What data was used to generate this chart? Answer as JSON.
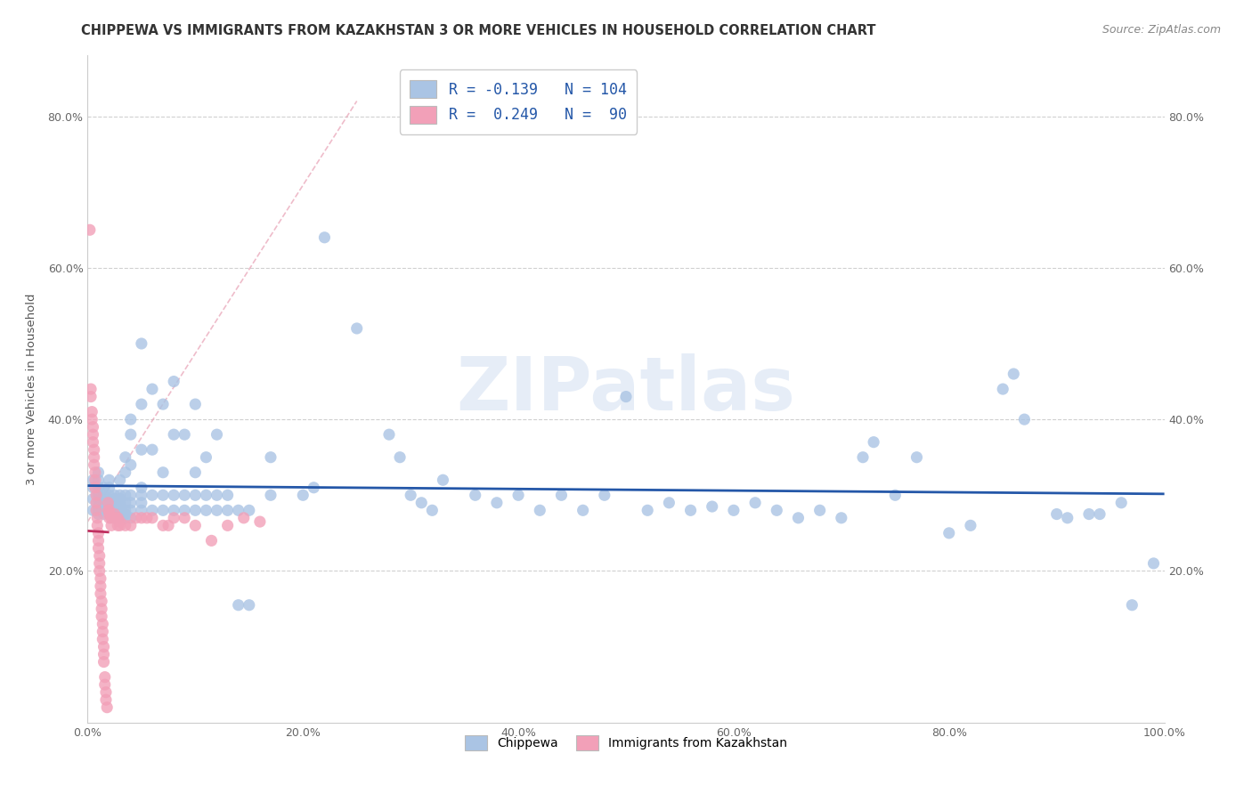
{
  "title": "CHIPPEWA VS IMMIGRANTS FROM KAZAKHSTAN 3 OR MORE VEHICLES IN HOUSEHOLD CORRELATION CHART",
  "source": "Source: ZipAtlas.com",
  "ylabel": "3 or more Vehicles in Household",
  "xmin": 0.0,
  "xmax": 1.0,
  "ymin": 0.0,
  "ymax": 0.88,
  "x_tick_labels": [
    "0.0%",
    "20.0%",
    "40.0%",
    "60.0%",
    "80.0%",
    "100.0%"
  ],
  "x_tick_vals": [
    0.0,
    0.2,
    0.4,
    0.6,
    0.8,
    1.0
  ],
  "y_tick_labels": [
    "20.0%",
    "40.0%",
    "60.0%",
    "80.0%"
  ],
  "y_tick_vals": [
    0.2,
    0.4,
    0.6,
    0.8
  ],
  "chippewa_color": "#aac4e4",
  "kazakh_color": "#f2a0b8",
  "chippewa_line_color": "#2457a8",
  "kazakh_line_color": "#c03060",
  "watermark": "ZIPatlas",
  "bg_color": "#ffffff",
  "grid_color": "#d0d0d0",
  "title_fontsize": 10.5,
  "source_fontsize": 9,
  "axis_fontsize": 9.5,
  "tick_fontsize": 9,
  "legend_r_color": "#2457a8",
  "chippewa_scatter": [
    [
      0.005,
      0.28
    ],
    [
      0.005,
      0.295
    ],
    [
      0.005,
      0.31
    ],
    [
      0.005,
      0.32
    ],
    [
      0.01,
      0.275
    ],
    [
      0.01,
      0.28
    ],
    [
      0.01,
      0.285
    ],
    [
      0.01,
      0.295
    ],
    [
      0.01,
      0.3
    ],
    [
      0.01,
      0.31
    ],
    [
      0.01,
      0.32
    ],
    [
      0.01,
      0.33
    ],
    [
      0.015,
      0.275
    ],
    [
      0.015,
      0.28
    ],
    [
      0.015,
      0.285
    ],
    [
      0.015,
      0.29
    ],
    [
      0.015,
      0.295
    ],
    [
      0.015,
      0.3
    ],
    [
      0.015,
      0.31
    ],
    [
      0.02,
      0.275
    ],
    [
      0.02,
      0.28
    ],
    [
      0.02,
      0.285
    ],
    [
      0.02,
      0.29
    ],
    [
      0.02,
      0.295
    ],
    [
      0.02,
      0.3
    ],
    [
      0.02,
      0.31
    ],
    [
      0.02,
      0.32
    ],
    [
      0.025,
      0.27
    ],
    [
      0.025,
      0.275
    ],
    [
      0.025,
      0.28
    ],
    [
      0.025,
      0.285
    ],
    [
      0.025,
      0.29
    ],
    [
      0.025,
      0.295
    ],
    [
      0.025,
      0.3
    ],
    [
      0.03,
      0.27
    ],
    [
      0.03,
      0.275
    ],
    [
      0.03,
      0.28
    ],
    [
      0.03,
      0.285
    ],
    [
      0.03,
      0.29
    ],
    [
      0.03,
      0.295
    ],
    [
      0.03,
      0.3
    ],
    [
      0.03,
      0.32
    ],
    [
      0.035,
      0.27
    ],
    [
      0.035,
      0.275
    ],
    [
      0.035,
      0.28
    ],
    [
      0.035,
      0.29
    ],
    [
      0.035,
      0.3
    ],
    [
      0.035,
      0.33
    ],
    [
      0.035,
      0.35
    ],
    [
      0.04,
      0.27
    ],
    [
      0.04,
      0.28
    ],
    [
      0.04,
      0.29
    ],
    [
      0.04,
      0.3
    ],
    [
      0.04,
      0.34
    ],
    [
      0.04,
      0.38
    ],
    [
      0.04,
      0.4
    ],
    [
      0.05,
      0.28
    ],
    [
      0.05,
      0.29
    ],
    [
      0.05,
      0.3
    ],
    [
      0.05,
      0.31
    ],
    [
      0.05,
      0.36
    ],
    [
      0.05,
      0.42
    ],
    [
      0.05,
      0.5
    ],
    [
      0.06,
      0.28
    ],
    [
      0.06,
      0.3
    ],
    [
      0.06,
      0.36
    ],
    [
      0.06,
      0.44
    ],
    [
      0.07,
      0.28
    ],
    [
      0.07,
      0.3
    ],
    [
      0.07,
      0.33
    ],
    [
      0.07,
      0.42
    ],
    [
      0.08,
      0.28
    ],
    [
      0.08,
      0.3
    ],
    [
      0.08,
      0.38
    ],
    [
      0.08,
      0.45
    ],
    [
      0.09,
      0.28
    ],
    [
      0.09,
      0.3
    ],
    [
      0.09,
      0.38
    ],
    [
      0.1,
      0.28
    ],
    [
      0.1,
      0.3
    ],
    [
      0.1,
      0.33
    ],
    [
      0.1,
      0.42
    ],
    [
      0.11,
      0.28
    ],
    [
      0.11,
      0.3
    ],
    [
      0.11,
      0.35
    ],
    [
      0.12,
      0.28
    ],
    [
      0.12,
      0.3
    ],
    [
      0.12,
      0.38
    ],
    [
      0.13,
      0.28
    ],
    [
      0.13,
      0.3
    ],
    [
      0.14,
      0.155
    ],
    [
      0.14,
      0.28
    ],
    [
      0.15,
      0.155
    ],
    [
      0.15,
      0.28
    ],
    [
      0.17,
      0.3
    ],
    [
      0.17,
      0.35
    ],
    [
      0.2,
      0.3
    ],
    [
      0.21,
      0.31
    ],
    [
      0.22,
      0.64
    ],
    [
      0.25,
      0.52
    ],
    [
      0.28,
      0.38
    ],
    [
      0.29,
      0.35
    ],
    [
      0.3,
      0.3
    ],
    [
      0.31,
      0.29
    ],
    [
      0.32,
      0.28
    ],
    [
      0.33,
      0.32
    ],
    [
      0.36,
      0.3
    ],
    [
      0.38,
      0.29
    ],
    [
      0.4,
      0.3
    ],
    [
      0.42,
      0.28
    ],
    [
      0.44,
      0.3
    ],
    [
      0.46,
      0.28
    ],
    [
      0.48,
      0.3
    ],
    [
      0.5,
      0.43
    ],
    [
      0.52,
      0.28
    ],
    [
      0.54,
      0.29
    ],
    [
      0.56,
      0.28
    ],
    [
      0.58,
      0.285
    ],
    [
      0.6,
      0.28
    ],
    [
      0.62,
      0.29
    ],
    [
      0.64,
      0.28
    ],
    [
      0.66,
      0.27
    ],
    [
      0.68,
      0.28
    ],
    [
      0.7,
      0.27
    ],
    [
      0.72,
      0.35
    ],
    [
      0.73,
      0.37
    ],
    [
      0.75,
      0.3
    ],
    [
      0.77,
      0.35
    ],
    [
      0.8,
      0.25
    ],
    [
      0.82,
      0.26
    ],
    [
      0.85,
      0.44
    ],
    [
      0.86,
      0.46
    ],
    [
      0.87,
      0.4
    ],
    [
      0.9,
      0.275
    ],
    [
      0.91,
      0.27
    ],
    [
      0.93,
      0.275
    ],
    [
      0.94,
      0.275
    ],
    [
      0.96,
      0.29
    ],
    [
      0.97,
      0.155
    ],
    [
      0.99,
      0.21
    ]
  ],
  "kazakh_scatter": [
    [
      0.002,
      0.65
    ],
    [
      0.003,
      0.43
    ],
    [
      0.003,
      0.44
    ],
    [
      0.004,
      0.4
    ],
    [
      0.004,
      0.41
    ],
    [
      0.005,
      0.37
    ],
    [
      0.005,
      0.38
    ],
    [
      0.005,
      0.39
    ],
    [
      0.006,
      0.34
    ],
    [
      0.006,
      0.35
    ],
    [
      0.006,
      0.36
    ],
    [
      0.007,
      0.31
    ],
    [
      0.007,
      0.32
    ],
    [
      0.007,
      0.33
    ],
    [
      0.008,
      0.28
    ],
    [
      0.008,
      0.29
    ],
    [
      0.008,
      0.3
    ],
    [
      0.009,
      0.26
    ],
    [
      0.009,
      0.27
    ],
    [
      0.01,
      0.23
    ],
    [
      0.01,
      0.24
    ],
    [
      0.01,
      0.25
    ],
    [
      0.011,
      0.2
    ],
    [
      0.011,
      0.21
    ],
    [
      0.011,
      0.22
    ],
    [
      0.012,
      0.17
    ],
    [
      0.012,
      0.18
    ],
    [
      0.012,
      0.19
    ],
    [
      0.013,
      0.14
    ],
    [
      0.013,
      0.15
    ],
    [
      0.013,
      0.16
    ],
    [
      0.014,
      0.11
    ],
    [
      0.014,
      0.12
    ],
    [
      0.014,
      0.13
    ],
    [
      0.015,
      0.08
    ],
    [
      0.015,
      0.09
    ],
    [
      0.015,
      0.1
    ],
    [
      0.016,
      0.05
    ],
    [
      0.016,
      0.06
    ],
    [
      0.017,
      0.03
    ],
    [
      0.017,
      0.04
    ],
    [
      0.018,
      0.02
    ],
    [
      0.019,
      0.28
    ],
    [
      0.019,
      0.29
    ],
    [
      0.02,
      0.27
    ],
    [
      0.02,
      0.275
    ],
    [
      0.02,
      0.28
    ],
    [
      0.022,
      0.26
    ],
    [
      0.022,
      0.27
    ],
    [
      0.025,
      0.27
    ],
    [
      0.025,
      0.275
    ],
    [
      0.028,
      0.26
    ],
    [
      0.028,
      0.27
    ],
    [
      0.03,
      0.26
    ],
    [
      0.03,
      0.265
    ],
    [
      0.035,
      0.26
    ],
    [
      0.04,
      0.26
    ],
    [
      0.045,
      0.27
    ],
    [
      0.05,
      0.27
    ],
    [
      0.055,
      0.27
    ],
    [
      0.06,
      0.27
    ],
    [
      0.07,
      0.26
    ],
    [
      0.075,
      0.26
    ],
    [
      0.08,
      0.27
    ],
    [
      0.09,
      0.27
    ],
    [
      0.1,
      0.26
    ],
    [
      0.115,
      0.24
    ],
    [
      0.13,
      0.26
    ],
    [
      0.145,
      0.27
    ],
    [
      0.16,
      0.265
    ]
  ]
}
